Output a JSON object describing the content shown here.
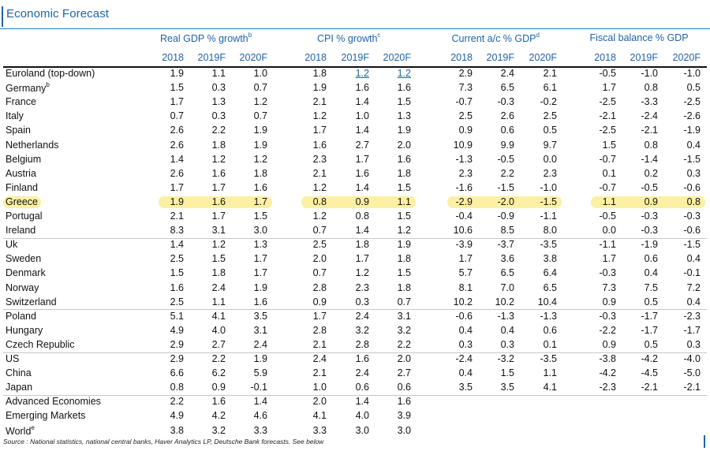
{
  "title": "Economic Forecast",
  "groups": [
    {
      "label": "Real GDP % growth",
      "note": "b"
    },
    {
      "label": "CPI % growth",
      "note": "c"
    },
    {
      "label": "Current a/c % GDP",
      "note": "d"
    },
    {
      "label": "Fiscal balance % GDP",
      "note": ""
    }
  ],
  "years": [
    "2018",
    "2019F",
    "2020F"
  ],
  "rows": [
    {
      "label": "Euroland (top-down)",
      "note": "",
      "values": [
        "1.9",
        "1.1",
        "1.0",
        "1.8",
        "1.2",
        "1.2",
        "2.9",
        "2.4",
        "2.1",
        "-0.5",
        "-1.0",
        "-1.0"
      ]
    },
    {
      "label": "Germany",
      "note": "b",
      "values": [
        "1.5",
        "0.3",
        "0.7",
        "1.9",
        "1.6",
        "1.6",
        "7.3",
        "6.5",
        "6.1",
        "1.7",
        "0.8",
        "0.5"
      ]
    },
    {
      "label": "France",
      "note": "",
      "values": [
        "1.7",
        "1.3",
        "1.2",
        "2.1",
        "1.4",
        "1.5",
        "-0.7",
        "-0.3",
        "-0.2",
        "-2.5",
        "-3.3",
        "-2.5"
      ]
    },
    {
      "label": "Italy",
      "note": "",
      "values": [
        "0.7",
        "0.3",
        "0.7",
        "1.2",
        "1.0",
        "1.3",
        "2.5",
        "2.6",
        "2.5",
        "-2.1",
        "-2.4",
        "-2.6"
      ]
    },
    {
      "label": "Spain",
      "note": "",
      "values": [
        "2.6",
        "2.2",
        "1.9",
        "1.7",
        "1.4",
        "1.9",
        "0.9",
        "0.6",
        "0.5",
        "-2.5",
        "-2.1",
        "-1.9"
      ]
    },
    {
      "label": "Netherlands",
      "note": "",
      "values": [
        "2.6",
        "1.8",
        "1.9",
        "1.6",
        "2.7",
        "2.0",
        "10.9",
        "9.9",
        "9.7",
        "1.5",
        "0.8",
        "0.4"
      ]
    },
    {
      "label": "Belgium",
      "note": "",
      "values": [
        "1.4",
        "1.2",
        "1.2",
        "2.3",
        "1.7",
        "1.6",
        "-1.3",
        "-0.5",
        "0.0",
        "-0.7",
        "-1.4",
        "-1.5"
      ]
    },
    {
      "label": "Austria",
      "note": "",
      "values": [
        "2.6",
        "1.6",
        "1.8",
        "2.1",
        "1.6",
        "1.8",
        "2.3",
        "2.2",
        "2.3",
        "0.1",
        "0.2",
        "0.3"
      ]
    },
    {
      "label": "Finland",
      "note": "",
      "values": [
        "1.7",
        "1.7",
        "1.6",
        "1.2",
        "1.4",
        "1.5",
        "-1.6",
        "-1.5",
        "-1.0",
        "-0.7",
        "-0.5",
        "-0.6"
      ]
    },
    {
      "label": "Greece",
      "note": "",
      "highlight": true,
      "values": [
        "1.9",
        "1.6",
        "1.7",
        "0.8",
        "0.9",
        "1.1",
        "-2.9",
        "-2.0",
        "-1.5",
        "1.1",
        "0.9",
        "0.8"
      ]
    },
    {
      "label": "Portugal",
      "note": "",
      "values": [
        "2.1",
        "1.7",
        "1.5",
        "1.2",
        "0.8",
        "1.5",
        "-0.4",
        "-0.9",
        "-1.1",
        "-0.5",
        "-0.3",
        "-0.3"
      ]
    },
    {
      "label": "Ireland",
      "note": "",
      "values": [
        "8.3",
        "3.1",
        "3.0",
        "0.7",
        "1.4",
        "1.2",
        "10.6",
        "8.5",
        "8.0",
        "0.0",
        "-0.3",
        "-0.6"
      ]
    },
    {
      "label": "Uk",
      "note": "",
      "values": [
        "1.4",
        "1.2",
        "1.3",
        "2.5",
        "1.8",
        "1.9",
        "-3.9",
        "-3.7",
        "-3.5",
        "-1.1",
        "-1.9",
        "-1.5"
      ]
    },
    {
      "label": "Sweden",
      "note": "",
      "values": [
        "2.5",
        "1.5",
        "1.7",
        "2.0",
        "1.7",
        "1.8",
        "1.7",
        "3.6",
        "3.8",
        "1.7",
        "0.6",
        "0.4"
      ]
    },
    {
      "label": "Denmark",
      "note": "",
      "values": [
        "1.5",
        "1.8",
        "1.7",
        "0.7",
        "1.2",
        "1.5",
        "5.7",
        "6.5",
        "6.4",
        "-0.3",
        "0.4",
        "-0.1"
      ]
    },
    {
      "label": "Norway",
      "note": "",
      "values": [
        "1.6",
        "2.4",
        "1.9",
        "2.8",
        "2.3",
        "1.8",
        "8.1",
        "7.0",
        "6.5",
        "7.3",
        "7.5",
        "7.2"
      ]
    },
    {
      "label": "Switzerland",
      "note": "",
      "values": [
        "2.5",
        "1.1",
        "1.6",
        "0.9",
        "0.3",
        "0.7",
        "10.2",
        "10.2",
        "10.4",
        "0.9",
        "0.5",
        "0.4"
      ]
    },
    {
      "label": "Poland",
      "note": "",
      "values": [
        "5.1",
        "4.1",
        "3.5",
        "1.7",
        "2.4",
        "3.1",
        "-0.6",
        "-1.3",
        "-1.3",
        "-0.3",
        "-1.7",
        "-2.3"
      ]
    },
    {
      "label": "Hungary",
      "note": "",
      "values": [
        "4.9",
        "4.0",
        "3.1",
        "2.8",
        "3.2",
        "3.2",
        "0.4",
        "0.4",
        "0.6",
        "-2.2",
        "-1.7",
        "-1.7"
      ]
    },
    {
      "label": "Czech Republic",
      "note": "",
      "values": [
        "2.9",
        "2.7",
        "2.4",
        "2.1",
        "2.8",
        "2.2",
        "0.3",
        "0.3",
        "0.1",
        "0.9",
        "0.5",
        "0.3"
      ]
    },
    {
      "label": "US",
      "note": "",
      "values": [
        "2.9",
        "2.2",
        "1.9",
        "2.4",
        "1.6",
        "2.0",
        "-2.4",
        "-3.2",
        "-3.5",
        "-3.8",
        "-4.2",
        "-4.0"
      ]
    },
    {
      "label": "China",
      "note": "",
      "values": [
        "6.6",
        "6.2",
        "5.9",
        "2.1",
        "2.4",
        "2.7",
        "0.4",
        "1.5",
        "1.1",
        "-4.2",
        "-4.5",
        "-5.0"
      ]
    },
    {
      "label": "Japan",
      "note": "",
      "values": [
        "0.8",
        "0.9",
        "-0.1",
        "1.0",
        "0.6",
        "0.6",
        "3.5",
        "3.5",
        "4.1",
        "-2.3",
        "-2.1",
        "-2.1"
      ]
    },
    {
      "label": "Advanced Economies",
      "note": "",
      "values": [
        "2.2",
        "1.6",
        "1.4",
        "2.0",
        "1.4",
        "1.6",
        "",
        "",
        "",
        "",
        "",
        ""
      ]
    },
    {
      "label": "Emerging Markets",
      "note": "",
      "values": [
        "4.9",
        "4.2",
        "4.6",
        "4.1",
        "4.0",
        "3.9",
        "",
        "",
        "",
        "",
        "",
        ""
      ]
    },
    {
      "label": "World",
      "note": "e",
      "values": [
        "3.8",
        "3.2",
        "3.3",
        "3.3",
        "3.0",
        "3.0",
        "",
        "",
        "",
        "",
        "",
        ""
      ]
    }
  ],
  "source": "Source : National statistics, national central banks, Haver Analytics LP, Deutsche Bank forecasts. See below"
}
